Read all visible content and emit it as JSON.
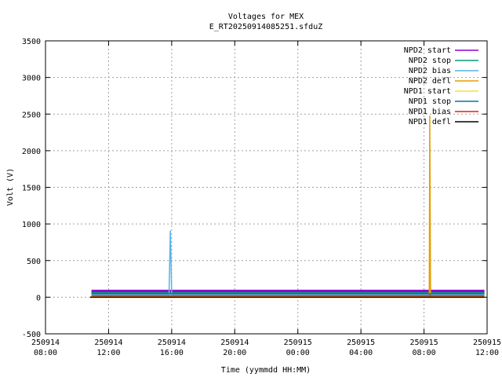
{
  "chart_data": {
    "type": "line",
    "title": "Voltages for MEX",
    "subtitle": "E_RT20250914085251.sfduZ",
    "xlabel": "Time (yymmdd HH:MM)",
    "ylabel": "Volt (V)",
    "ylim": [
      -500,
      3500
    ],
    "xlim": [
      "2025-09-14 08:00",
      "2025-09-15 12:00"
    ],
    "yticks": [
      "-500",
      "0",
      "500",
      "1000",
      "1500",
      "2000",
      "2500",
      "3000",
      "3500"
    ],
    "xticks": [
      {
        "date": "250914",
        "time": "08:00"
      },
      {
        "date": "250914",
        "time": "12:00"
      },
      {
        "date": "250914",
        "time": "16:00"
      },
      {
        "date": "250914",
        "time": "20:00"
      },
      {
        "date": "250915",
        "time": "00:00"
      },
      {
        "date": "250915",
        "time": "04:00"
      },
      {
        "date": "250915",
        "time": "08:00"
      },
      {
        "date": "250915",
        "time": "12:00"
      }
    ],
    "grid": true,
    "legend_position": "top-right",
    "series": [
      {
        "name": "NPD2 start",
        "color": "#9400d3",
        "x": [
          "2025-09-14 10:55",
          "2025-09-15 11:50"
        ],
        "y": [
          75,
          75
        ]
      },
      {
        "name": "NPD2 stop",
        "color": "#009e73",
        "x": [
          "2025-09-14 10:55",
          "2025-09-15 11:50"
        ],
        "y": [
          60,
          60
        ]
      },
      {
        "name": "NPD2 bias",
        "color": "#56b4e9",
        "x": [
          "2025-09-14 10:55",
          "2025-09-14 15:50",
          "2025-09-14 15:55",
          "2025-09-14 16:00",
          "2025-09-15 11:50"
        ],
        "y": [
          40,
          40,
          910,
          40,
          40
        ]
      },
      {
        "name": "NPD2 defl",
        "color": "#e69f00",
        "x": [
          "2025-09-14 10:50",
          "2025-09-15 08:20",
          "2025-09-15 08:22",
          "2025-09-15 08:25",
          "2025-09-15 11:50"
        ],
        "y": [
          0,
          0,
          2480,
          0,
          0
        ]
      },
      {
        "name": "NPD1 start",
        "color": "#f0e442",
        "x": [
          "2025-09-14 10:50",
          "2025-09-15 11:50"
        ],
        "y": [
          5,
          5
        ]
      },
      {
        "name": "NPD1 stop",
        "color": "#0072b2",
        "x": [
          "2025-09-14 10:55",
          "2025-09-15 11:50"
        ],
        "y": [
          45,
          45
        ]
      },
      {
        "name": "NPD1 bias",
        "color": "#e51e10",
        "x": [
          "2025-09-14 10:55",
          "2025-09-15 11:50"
        ],
        "y": [
          20,
          20
        ]
      },
      {
        "name": "NPD1 defl",
        "color": "#000000",
        "x": [
          "2025-09-14 10:50",
          "2025-09-15 11:50"
        ],
        "y": [
          0,
          0
        ]
      }
    ]
  }
}
